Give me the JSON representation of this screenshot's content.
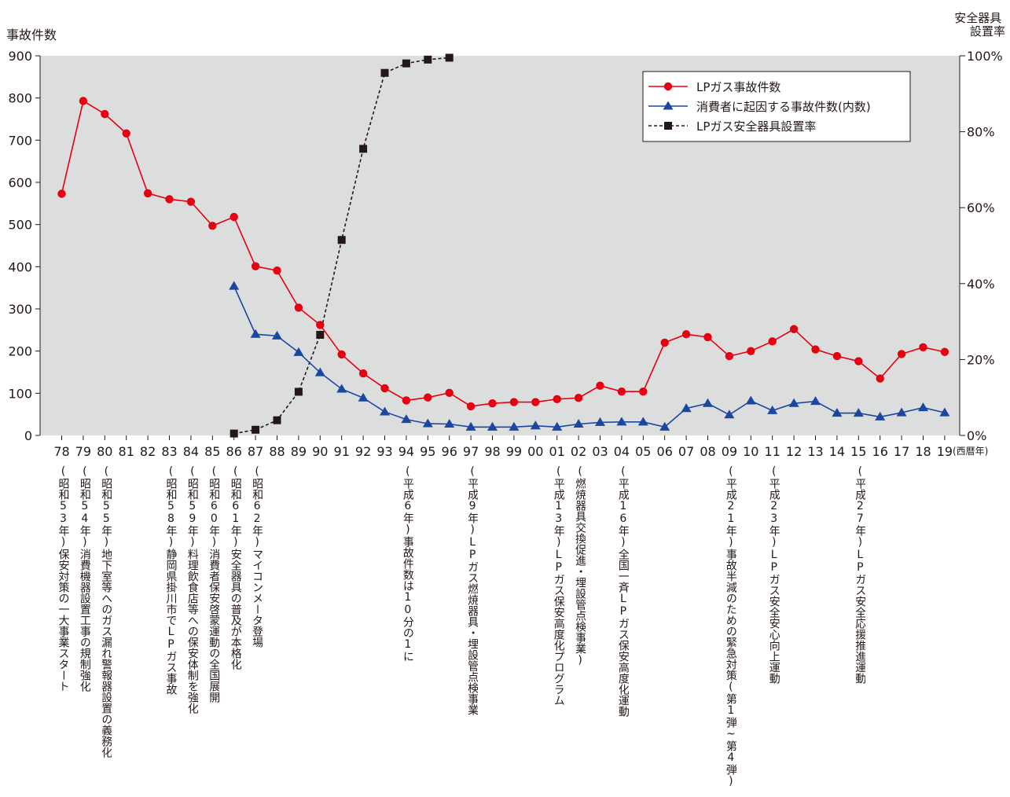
{
  "chart_data": {
    "type": "line",
    "y_left_label": "事故件数",
    "y_right_label": [
      "安全器具",
      "設置率"
    ],
    "x_unit_label": "(西暦年)",
    "categories": [
      "78",
      "79",
      "80",
      "81",
      "82",
      "83",
      "84",
      "85",
      "86",
      "87",
      "88",
      "89",
      "90",
      "91",
      "92",
      "93",
      "94",
      "95",
      "96",
      "97",
      "98",
      "99",
      "00",
      "01",
      "02",
      "03",
      "04",
      "05",
      "06",
      "07",
      "08",
      "09",
      "10",
      "11",
      "12",
      "13",
      "14",
      "15",
      "16",
      "17",
      "18",
      "19"
    ],
    "y_left_ticks": [
      "0",
      "100",
      "200",
      "300",
      "400",
      "500",
      "600",
      "700",
      "800",
      "900"
    ],
    "y_left_range": [
      0,
      900
    ],
    "y_right_ticks": [
      "0%",
      "20%",
      "40%",
      "60%",
      "80%",
      "100%"
    ],
    "y_right_range": [
      0,
      100
    ],
    "grid": false,
    "legend_position": "top-right",
    "series": [
      {
        "name": "LPガス事故件数",
        "axis": "left",
        "color": "#e60012",
        "marker": "circle",
        "style": "solid",
        "values": [
          573,
          793,
          762,
          716,
          574,
          560,
          554,
          497,
          518,
          401,
          391,
          303,
          262,
          192,
          147,
          112,
          83,
          90,
          101,
          69,
          76,
          79,
          79,
          86,
          89,
          118,
          104,
          104,
          220,
          240,
          233,
          188,
          200,
          223,
          252,
          204,
          188,
          176,
          135,
          193,
          209,
          198
        ]
      },
      {
        "name": "消費者に起因する事故件数(内数)",
        "axis": "left",
        "color": "#1a47a0",
        "marker": "triangle",
        "style": "solid",
        "values": [
          null,
          null,
          null,
          null,
          null,
          null,
          null,
          null,
          354,
          240,
          236,
          197,
          149,
          110,
          89,
          56,
          38,
          28,
          27,
          20,
          20,
          20,
          23,
          20,
          27,
          31,
          32,
          32,
          20,
          64,
          76,
          49,
          82,
          59,
          76,
          81,
          53,
          53,
          44,
          54,
          66,
          54
        ]
      },
      {
        "name": "LPガス安全器具設置率",
        "axis": "right",
        "color": "#231815",
        "marker": "square",
        "style": "dashed",
        "values": [
          null,
          null,
          null,
          null,
          null,
          null,
          null,
          null,
          0.5,
          1.5,
          4,
          11.5,
          26.5,
          51.5,
          75.5,
          95.5,
          98,
          99,
          99.5,
          null,
          null,
          null,
          null,
          null,
          null,
          null,
          null,
          null,
          null,
          null,
          null,
          null,
          null,
          null,
          null,
          null,
          null,
          null,
          null,
          null,
          null,
          null
        ]
      }
    ]
  },
  "annotations": [
    {
      "year": "78",
      "text": "(昭和53年)保安対策の一大事業スタート"
    },
    {
      "year": "79",
      "text": "(昭和54年)消費機器設置工事の規制強化"
    },
    {
      "year": "80",
      "text": "(昭和55年)地下室等へのガス漏れ警報器設置の義務化"
    },
    {
      "year": "83",
      "text": "(昭和58年)静岡県掛川市でLPガス事故"
    },
    {
      "year": "84",
      "text": "(昭和59年)料理飲食店等への保安体制を強化"
    },
    {
      "year": "85",
      "text": "(昭和60年)消費者保安啓蒙運動の全国展開"
    },
    {
      "year": "86",
      "text": "(昭和61年)安全器具の普及が本格化"
    },
    {
      "year": "87",
      "text": "(昭和62年)マイコンメータ登場"
    },
    {
      "year": "94",
      "text": "(平成6年)事故件数は10分の1に"
    },
    {
      "year": "97",
      "text": "(平成9年)LPガス燃焼器具・埋設管点検事業"
    },
    {
      "year": "01",
      "text": "(平成13年)LPガス保安高度化プログラム"
    },
    {
      "year": "02",
      "text": "(燃焼器具交換促進・埋設管点検事業)"
    },
    {
      "year": "04",
      "text": "(平成16年)全国一斉LPガス保安高度化運動"
    },
    {
      "year": "09",
      "text": "(平成21年)事故半減のための緊急対策(第1弾~第4弾)"
    },
    {
      "year": "11",
      "text": "(平成23年)LPガス安全安心向上運動"
    },
    {
      "year": "15",
      "text": "(平成27年)LPガス安全応援推進運動"
    }
  ]
}
